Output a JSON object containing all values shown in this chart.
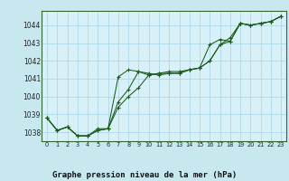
{
  "title": "Graphe pression niveau de la mer (hPa)",
  "bg_color": "#c8e8f0",
  "plot_bg_color": "#d8f0f8",
  "grid_color": "#b0d8e8",
  "line_color": "#1a5c1a",
  "marker_color": "#1a5c1a",
  "ylim": [
    1037.5,
    1044.8
  ],
  "xlim": [
    -0.5,
    23.5
  ],
  "yticks": [
    1038,
    1039,
    1040,
    1041,
    1042,
    1043,
    1044
  ],
  "xticks": [
    0,
    1,
    2,
    3,
    4,
    5,
    6,
    7,
    8,
    9,
    10,
    11,
    12,
    13,
    14,
    15,
    16,
    17,
    18,
    19,
    20,
    21,
    22,
    23
  ],
  "series": [
    [
      1038.8,
      1038.1,
      1038.3,
      1037.8,
      1037.8,
      1038.1,
      1038.2,
      1039.7,
      1040.4,
      1041.4,
      1041.3,
      1041.2,
      1041.3,
      1041.3,
      1041.5,
      1041.6,
      1042.0,
      1042.9,
      1043.1,
      1044.1,
      1044.0,
      1044.1,
      1044.2,
      1044.5
    ],
    [
      1038.8,
      1038.1,
      1038.3,
      1037.8,
      1037.8,
      1038.1,
      1038.2,
      1041.1,
      1041.5,
      1041.4,
      1041.2,
      1041.3,
      1041.3,
      1041.3,
      1041.5,
      1041.6,
      1042.9,
      1043.2,
      1043.1,
      1044.1,
      1044.0,
      1044.1,
      1044.2,
      1044.5
    ],
    [
      1038.8,
      1038.1,
      1038.3,
      1037.8,
      1037.8,
      1038.2,
      1038.2,
      1039.4,
      1040.0,
      1040.5,
      1041.2,
      1041.3,
      1041.4,
      1041.4,
      1041.5,
      1041.6,
      1042.0,
      1042.9,
      1043.3,
      1044.1,
      1044.0,
      1044.1,
      1044.2,
      1044.5
    ]
  ],
  "xlabel_fontsize": 6.5,
  "ytick_fontsize": 5.5,
  "xtick_fontsize": 4.8
}
